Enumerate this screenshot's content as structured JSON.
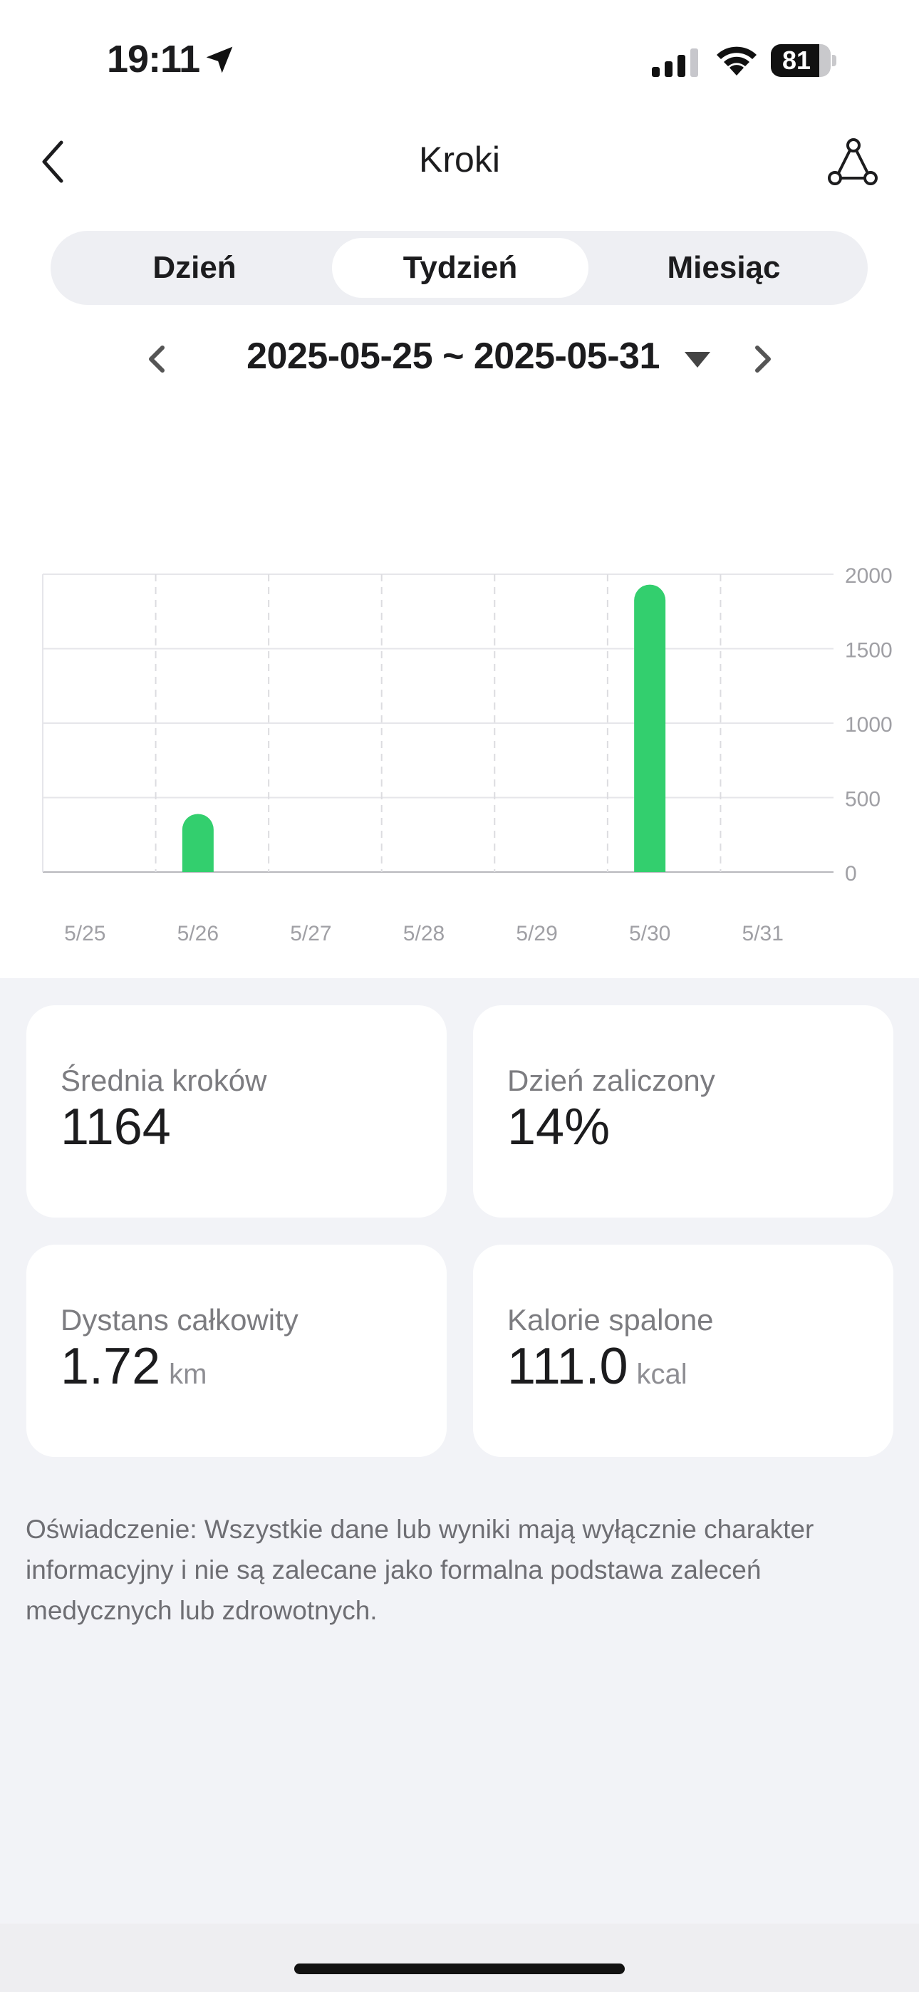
{
  "status_bar": {
    "time": "19:11",
    "battery": "81",
    "battery_level": 0.81
  },
  "header": {
    "title": "Kroki"
  },
  "tabs": [
    {
      "label": "Dzień",
      "active": false
    },
    {
      "label": "Tydzień",
      "active": true
    },
    {
      "label": "Miesiąc",
      "active": false
    }
  ],
  "date_range": {
    "label": "2025-05-25 ~ 2025-05-31"
  },
  "chart_data": {
    "type": "bar",
    "categories": [
      "5/25",
      "5/26",
      "5/27",
      "5/28",
      "5/29",
      "5/30",
      "5/31"
    ],
    "values": [
      0,
      390,
      0,
      0,
      0,
      1930,
      0
    ],
    "ylim": [
      0,
      2000
    ],
    "yticks": [
      "2000",
      "1500",
      "1000",
      "500",
      "0"
    ],
    "y_axis_position": "right",
    "grid": true,
    "bar_color": "#33cf6e"
  },
  "stats": {
    "avg_steps": {
      "label": "Średnia kroków",
      "value": "1164"
    },
    "day_completed": {
      "label": "Dzień zaliczony",
      "value": "14%"
    },
    "distance": {
      "label": "Dystans całkowity",
      "value": "1.72",
      "unit": "km"
    },
    "calories": {
      "label": "Kalorie spalone",
      "value": "111.0",
      "unit": "kcal"
    }
  },
  "disclaimer": "Oświadczenie: Wszystkie dane lub wyniki mają wyłącznie charakter informacyjny i nie są zalecane jako formalna podstawa zaleceń medycznych lub zdrowotnych."
}
